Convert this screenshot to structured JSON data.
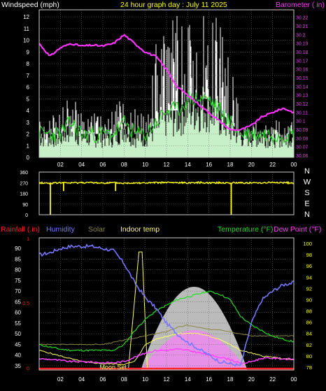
{
  "header": {
    "wind_label": "Windspeed (mph)",
    "title": "24 hour graph day : July 11 2025",
    "baro_label": "Barometer ( in)"
  },
  "bottom_header": {
    "rain_label": "Rainfall (.in)",
    "humidity_label": "Humidity",
    "solar_label": "Solar",
    "indoor_label": "Indoor temp",
    "temp_label": "Temperature (°F)",
    "dew_label": "Dew Point (°F)",
    "moon_label": "Moon Set"
  },
  "colors": {
    "background": "#000000",
    "grid": "#666666",
    "wind_gust": "#ffffff",
    "wind_avg": "#22cc22",
    "wind_fill": "#c8f0c8",
    "barometer": "#ff33ff",
    "direction": "#ffff00",
    "rain": "#ff2222",
    "humidity": "#7777ff",
    "solar": "#888844",
    "indoor": "#ffff66",
    "temperature": "#22dd22",
    "dewpoint": "#ff44ff",
    "sun_area": "#bbbbbb",
    "sun_inner": "#ee88ee",
    "axis_text_left": "#ffffff",
    "axis_text_right": "#ffff00"
  },
  "chart_data": [
    {
      "type": "bar",
      "name": "wind",
      "x_ticks": [
        "02",
        "04",
        "06",
        "08",
        "10",
        "12",
        "14",
        "16",
        "18",
        "20",
        "22",
        "00"
      ],
      "y_ticks": [
        "0",
        "1",
        "2",
        "3",
        "4",
        "5",
        "6",
        "7",
        "8",
        "9",
        "10",
        "11",
        "12"
      ],
      "ylim": [
        0,
        12.6
      ],
      "y2_ticks": [
        "30.06",
        "30.07",
        "30.08",
        "30.09",
        "30.1",
        "30.11",
        "30.12",
        "30.13",
        "30.14",
        "30.15",
        "30.16",
        "30.17",
        "30.18",
        "30.19",
        "30.2",
        "30.21",
        "30.22"
      ],
      "y2lim": [
        30.058,
        30.229
      ],
      "hours": [
        0,
        1,
        2,
        3,
        4,
        5,
        6,
        7,
        8,
        9,
        10,
        11,
        12,
        13,
        14,
        15,
        16,
        17,
        18,
        19,
        20,
        21,
        22,
        23,
        24
      ],
      "gust": [
        3,
        3,
        4,
        5,
        4,
        4,
        3,
        4,
        5,
        4,
        5,
        9,
        11,
        11,
        11,
        11,
        11,
        11,
        9,
        3,
        3,
        3,
        3,
        3,
        3
      ],
      "avg": [
        2,
        2,
        2,
        3,
        2,
        2,
        2,
        2,
        3,
        2,
        2,
        3,
        4,
        4,
        5,
        5,
        5,
        4,
        3,
        2,
        2,
        2,
        2,
        2,
        2
      ],
      "barometer": [
        30.19,
        30.175,
        30.185,
        30.19,
        30.187,
        30.188,
        30.187,
        30.19,
        30.2,
        30.19,
        30.18,
        30.175,
        30.16,
        30.14,
        30.13,
        30.12,
        30.11,
        30.1,
        30.09,
        30.09,
        30.095,
        30.105,
        30.11,
        30.115,
        30.11
      ]
    },
    {
      "type": "line",
      "name": "wind_direction",
      "y_ticks": [
        "360",
        "270",
        "180",
        "90",
        "0"
      ],
      "ylim": [
        0,
        360
      ],
      "compass": [
        "N",
        "W",
        "S",
        "E",
        "N"
      ],
      "hours": [
        0,
        1,
        2,
        3,
        4,
        5,
        6,
        7,
        8,
        9,
        10,
        11,
        12,
        13,
        14,
        15,
        16,
        17,
        18,
        19,
        20,
        21,
        22,
        23,
        24
      ],
      "direction": [
        270,
        265,
        270,
        268,
        272,
        270,
        268,
        270,
        265,
        270,
        268,
        270,
        272,
        270,
        270,
        272,
        270,
        270,
        268,
        270,
        268,
        270,
        272,
        270,
        268
      ]
    },
    {
      "type": "line",
      "name": "temperature_humidity",
      "x_ticks": [
        "02",
        "04",
        "06",
        "08",
        "10",
        "12",
        "14",
        "16",
        "18",
        "20",
        "22",
        "00"
      ],
      "y_ticks": [
        "35",
        "40",
        "45",
        "50",
        "55",
        "60",
        "65",
        "70",
        "75",
        "80",
        "85",
        "90"
      ],
      "ylim": [
        33,
        95
      ],
      "y2_ticks": [
        "78",
        "80",
        "82",
        "84",
        "86",
        "88",
        "90",
        "92",
        "94",
        "96",
        "98",
        "100"
      ],
      "y2lim": [
        77.5,
        101
      ],
      "rain_ticks": [
        "0",
        "0.5",
        "1"
      ],
      "hours": [
        0,
        1,
        2,
        3,
        4,
        5,
        6,
        7,
        8,
        9,
        10,
        11,
        12,
        13,
        14,
        15,
        16,
        17,
        18,
        19,
        20,
        21,
        22,
        23,
        24
      ],
      "humidity": [
        87,
        88,
        90,
        91,
        91,
        91,
        90,
        89,
        83,
        74,
        67,
        62,
        55,
        50,
        46,
        43,
        40,
        37,
        36,
        35,
        55,
        66,
        70,
        73,
        74
      ],
      "temperature": [
        82,
        81.6,
        81.2,
        81,
        81,
        81,
        81,
        81,
        82,
        84.5,
        86.5,
        88,
        89,
        90,
        90.5,
        91,
        91.5,
        91,
        90,
        87,
        85.5,
        84.5,
        83.5,
        83,
        82.5
      ],
      "dewpoint": [
        79.5,
        79.4,
        79.2,
        79,
        79,
        78.9,
        78.8,
        78.8,
        79,
        79.8,
        80.5,
        81,
        81,
        81.2,
        81,
        80.6,
        80.2,
        79.8,
        79.4,
        78.6,
        79,
        79.6,
        79.6,
        79.5,
        79.4
      ],
      "indoor": [
        81,
        80.5,
        80,
        79.5,
        79,
        78.8,
        78.6,
        78.6,
        78.5,
        79,
        82,
        83,
        83.5,
        84,
        84,
        84,
        83.5,
        83,
        82,
        81,
        80.5,
        80,
        79.8,
        79.5,
        79.3
      ],
      "solar": [
        45,
        45,
        45,
        45,
        45,
        45,
        45,
        46,
        47,
        48,
        49,
        50,
        51,
        53,
        54,
        53,
        52,
        52,
        51,
        50,
        49,
        49,
        49,
        49,
        49
      ],
      "sun_peak_hour": 13.7
    }
  ]
}
